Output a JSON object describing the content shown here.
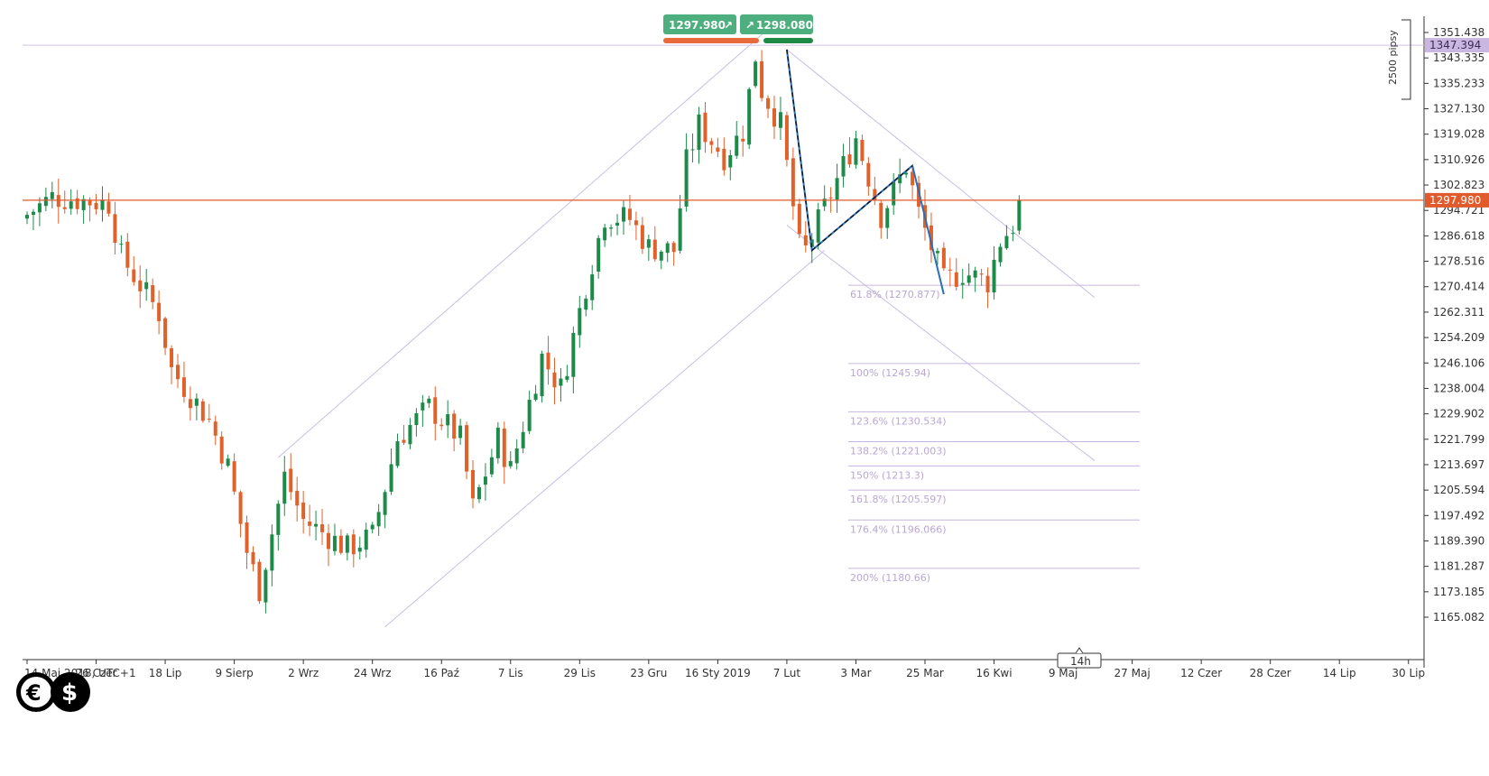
{
  "chart_data": {
    "type": "candlestick",
    "timezone_label": "UTC+1",
    "y_ticks": [
      1351.438,
      1343.335,
      1335.233,
      1327.13,
      1319.028,
      1310.926,
      1302.823,
      1294.721,
      1286.618,
      1278.516,
      1270.414,
      1262.311,
      1254.209,
      1246.106,
      1238.004,
      1229.902,
      1221.799,
      1213.697,
      1205.594,
      1197.492,
      1189.39,
      1181.287,
      1173.185,
      1165.082
    ],
    "ylim": [
      1162.0,
      1356.0
    ],
    "x_labels": [
      "14 Maj 2018, UTC+1",
      "26 Czer",
      "18 Lip",
      "9 Sierp",
      "2 Wrz",
      "24 Wrz",
      "16 Paź",
      "7 Lis",
      "29 Lis",
      "23 Gru",
      "16 Sty 2019",
      "7 Lut",
      "3 Mar",
      "25 Mar",
      "16 Kwi",
      "9 Maj",
      "27 Maj",
      "12 Czer",
      "28 Czer",
      "14 Lip",
      "30 Lip"
    ],
    "x_label_index": [
      0,
      11,
      22,
      33,
      44,
      55,
      66,
      77,
      88,
      99,
      110,
      121,
      132,
      143,
      154,
      165,
      176,
      187,
      198,
      209,
      220
    ],
    "current_price": 1297.98,
    "current_price_label": "1297.980",
    "resistance_price": 1347.394,
    "resistance_label": "1347.394",
    "pips_label": "2500 pipsy",
    "timeframe_label": "14h",
    "bid_label": "1297.980",
    "ask_label": "1298.080",
    "key_points": [
      {
        "i": 0,
        "p": 1292
      },
      {
        "i": 5,
        "p": 1299
      },
      {
        "i": 14,
        "p": 1297
      },
      {
        "i": 16,
        "p": 1280
      },
      {
        "i": 22,
        "p": 1262
      },
      {
        "i": 24,
        "p": 1244
      },
      {
        "i": 30,
        "p": 1228
      },
      {
        "i": 33,
        "p": 1213
      },
      {
        "i": 36,
        "p": 1186
      },
      {
        "i": 38,
        "p": 1174
      },
      {
        "i": 42,
        "p": 1210
      },
      {
        "i": 45,
        "p": 1196
      },
      {
        "i": 52,
        "p": 1187
      },
      {
        "i": 56,
        "p": 1191
      },
      {
        "i": 60,
        "p": 1222
      },
      {
        "i": 65,
        "p": 1232
      },
      {
        "i": 70,
        "p": 1222
      },
      {
        "i": 72,
        "p": 1200
      },
      {
        "i": 76,
        "p": 1222
      },
      {
        "i": 78,
        "p": 1212
      },
      {
        "i": 83,
        "p": 1248
      },
      {
        "i": 86,
        "p": 1238
      },
      {
        "i": 90,
        "p": 1271
      },
      {
        "i": 93,
        "p": 1293
      },
      {
        "i": 97,
        "p": 1292
      },
      {
        "i": 100,
        "p": 1283
      },
      {
        "i": 104,
        "p": 1282
      },
      {
        "i": 106,
        "p": 1310
      },
      {
        "i": 108,
        "p": 1322
      },
      {
        "i": 112,
        "p": 1312
      },
      {
        "i": 115,
        "p": 1320
      },
      {
        "i": 117,
        "p": 1344
      },
      {
        "i": 118,
        "p": 1333
      },
      {
        "i": 121,
        "p": 1322
      },
      {
        "i": 124,
        "p": 1283
      },
      {
        "i": 125,
        "p": 1282
      },
      {
        "i": 129,
        "p": 1300
      },
      {
        "i": 133,
        "p": 1318
      },
      {
        "i": 137,
        "p": 1293
      },
      {
        "i": 141,
        "p": 1309
      },
      {
        "i": 143,
        "p": 1294
      },
      {
        "i": 147,
        "p": 1272
      },
      {
        "i": 150,
        "p": 1275
      },
      {
        "i": 154,
        "p": 1272
      },
      {
        "i": 156,
        "p": 1285
      },
      {
        "i": 158,
        "p": 1290
      }
    ],
    "fib_levels": [
      {
        "label": "61.8% (1270.877)",
        "price": 1270.877
      },
      {
        "label": "100% (1245.94)",
        "price": 1245.94
      },
      {
        "label": "123.6% (1230.534)",
        "price": 1230.534
      },
      {
        "label": "138.2% (1221.003)",
        "price": 1221.003
      },
      {
        "label": "150% (1213.3)",
        "price": 1213.3
      },
      {
        "label": "161.8% (1205.597)",
        "price": 1205.597
      },
      {
        "label": "176.4% (1196.066)",
        "price": 1196.066
      },
      {
        "label": "200% (1180.66)",
        "price": 1180.66
      }
    ],
    "channel_up": [
      {
        "i": 40,
        "p": 1216
      },
      {
        "i": 120,
        "p": 1356
      }
    ],
    "channel_down_parallel": [
      {
        "i": 57,
        "p": 1162
      },
      {
        "i": 127,
        "p": 1282
      }
    ],
    "channel_down_upper": [
      {
        "i": 121,
        "p": 1346
      },
      {
        "i": 170,
        "p": 1267
      }
    ],
    "channel_down_lower": [
      {
        "i": 121,
        "p": 1290
      },
      {
        "i": 170,
        "p": 1215
      }
    ],
    "harmonic_blue": [
      {
        "i": 121,
        "p": 1346
      },
      {
        "i": 125,
        "p": 1282
      },
      {
        "i": 141,
        "p": 1309
      },
      {
        "i": 146,
        "p": 1268
      }
    ],
    "harmonic_dash": [
      {
        "i": 121,
        "p": 1346
      },
      {
        "i": 125,
        "p": 1282
      },
      {
        "i": 141,
        "p": 1309
      }
    ],
    "colors": {
      "up": "#1e8a4a",
      "down": "#e0612a",
      "guide": "#c9bde3",
      "fib": "#c6b6df",
      "price_line": "#e05a2b",
      "resistance_line": "#d8c8ea",
      "blue_line": "#2a6fb8",
      "badge_green": "#4caf7d",
      "bar_orange": "#e8693a",
      "bar_green": "#1f8a45"
    }
  }
}
